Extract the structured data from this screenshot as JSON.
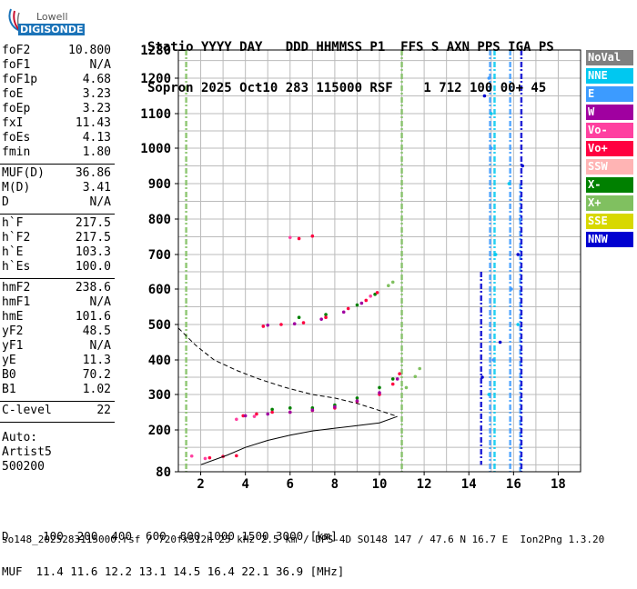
{
  "logo": {
    "top": "Lowell",
    "bottom": "DIGISONDE"
  },
  "header": {
    "line1": "Statio YYYY DAY   DDD HHMMSS P1  FFS S AXN PPS IGA PS",
    "line2": "Sopron 2025 Oct10 283 115000 RSF    1 712 100 00+ 45"
  },
  "params": {
    "group1": [
      {
        "k": "foF2",
        "v": "10.800"
      },
      {
        "k": "foF1",
        "v": "N/A"
      },
      {
        "k": "foF1p",
        "v": "4.68"
      },
      {
        "k": "foE",
        "v": "3.23"
      },
      {
        "k": "foEp",
        "v": "3.23"
      },
      {
        "k": "fxI",
        "v": "11.43"
      },
      {
        "k": "foEs",
        "v": "4.13"
      },
      {
        "k": "fmin",
        "v": "1.80"
      }
    ],
    "group2": [
      {
        "k": "MUF(D)",
        "v": "36.86"
      },
      {
        "k": "M(D)",
        "v": "3.41"
      },
      {
        "k": "D",
        "v": "N/A"
      }
    ],
    "group3": [
      {
        "k": "h`F",
        "v": "217.5"
      },
      {
        "k": "h`F2",
        "v": "217.5"
      },
      {
        "k": "h`E",
        "v": "103.3"
      },
      {
        "k": "h`Es",
        "v": "100.0"
      }
    ],
    "group4": [
      {
        "k": "hmF2",
        "v": "238.6"
      },
      {
        "k": "hmF1",
        "v": "N/A"
      },
      {
        "k": "hmE",
        "v": "101.6"
      },
      {
        "k": "yF2",
        "v": "48.5"
      },
      {
        "k": "yF1",
        "v": "N/A"
      },
      {
        "k": "yE",
        "v": "11.3"
      },
      {
        "k": "B0",
        "v": "70.2"
      },
      {
        "k": "B1",
        "v": "1.02"
      }
    ],
    "group5": [
      {
        "k": "C-level",
        "v": "22"
      }
    ]
  },
  "auto": {
    "l1": "Auto:",
    "l2": "Artist5",
    "l3": "500200"
  },
  "legend": [
    {
      "label": "NoVal",
      "color": "#808080"
    },
    {
      "label": "NNE",
      "color": "#00c8f0"
    },
    {
      "label": "E",
      "color": "#3c9bff"
    },
    {
      "label": "W",
      "color": "#a000a0"
    },
    {
      "label": "Vo-",
      "color": "#ff40a0"
    },
    {
      "label": "Vo+",
      "color": "#ff0040"
    },
    {
      "label": "SSW",
      "color": "#ffb4b4"
    },
    {
      "label": "X-",
      "color": "#008000"
    },
    {
      "label": "X+",
      "color": "#80c060"
    },
    {
      "label": "SSE",
      "color": "#d8d800"
    },
    {
      "label": "NNW",
      "color": "#0000d0"
    }
  ],
  "footer": {
    "d_line": "D     100  200  400  600  800 1000 1500 3000 [km]",
    "muf_line": "MUF  11.4 11.6 12.2 13.1 14.5 16.4 22.1 36.9 [MHz]"
  },
  "fileline": "so148_2025283115000.rsf / 720fx512h 25 kHz 2.5 km / DPS-4D SO148 147 / 47.6 N 16.7 E  Ion2Png 1.3.20",
  "chart_data": {
    "type": "scatter",
    "xlim": [
      1,
      19
    ],
    "ylim": [
      80,
      1280
    ],
    "x_ticks": [
      2,
      4,
      6,
      8,
      10,
      12,
      14,
      16,
      18
    ],
    "y_ticks": [
      80,
      200,
      300,
      400,
      500,
      600,
      700,
      800,
      900,
      1000,
      1100,
      1200,
      1280
    ],
    "grid": true,
    "traces": [
      {
        "name": "X-",
        "color": "#008000",
        "points": [
          [
            5.2,
            258
          ],
          [
            6.0,
            262
          ],
          [
            7.0,
            262
          ],
          [
            8.0,
            270
          ],
          [
            9.0,
            290
          ],
          [
            10.0,
            320
          ],
          [
            10.6,
            345
          ],
          [
            6.4,
            520
          ],
          [
            7.6,
            528
          ],
          [
            9.0,
            555
          ],
          [
            9.8,
            585
          ]
        ]
      },
      {
        "name": "X+",
        "color": "#80c060",
        "points": [
          [
            11.2,
            320
          ],
          [
            11.6,
            352
          ],
          [
            11.8,
            375
          ],
          [
            10.4,
            610
          ],
          [
            10.6,
            620
          ]
        ]
      },
      {
        "name": "Vo+",
        "color": "#ff0040",
        "points": [
          [
            3.9,
            240
          ],
          [
            4.5,
            245
          ],
          [
            5.2,
            250
          ],
          [
            6.0,
            250
          ],
          [
            7.0,
            255
          ],
          [
            8.0,
            262
          ],
          [
            9.0,
            280
          ],
          [
            10.0,
            300
          ],
          [
            10.6,
            330
          ],
          [
            10.9,
            360
          ],
          [
            4.8,
            495
          ],
          [
            5.6,
            500
          ],
          [
            6.6,
            505
          ],
          [
            7.6,
            520
          ],
          [
            8.6,
            545
          ],
          [
            9.4,
            568
          ],
          [
            9.9,
            590
          ],
          [
            6.4,
            745
          ],
          [
            7.0,
            752
          ],
          [
            2.4,
            120
          ],
          [
            3.0,
            124
          ],
          [
            3.6,
            126
          ]
        ]
      },
      {
        "name": "W",
        "color": "#a000a0",
        "points": [
          [
            4.0,
            240
          ],
          [
            5.0,
            245
          ],
          [
            6.0,
            250
          ],
          [
            7.0,
            256
          ],
          [
            8.0,
            265
          ],
          [
            9.0,
            282
          ],
          [
            10.0,
            305
          ],
          [
            10.8,
            345
          ],
          [
            5.0,
            498
          ],
          [
            6.2,
            502
          ],
          [
            7.4,
            515
          ],
          [
            8.4,
            535
          ],
          [
            9.2,
            560
          ]
        ]
      },
      {
        "name": "Vo-",
        "color": "#ff40a0",
        "points": [
          [
            3.6,
            230
          ],
          [
            4.4,
            238
          ],
          [
            6.0,
            748
          ],
          [
            9.6,
            580
          ],
          [
            1.6,
            125
          ],
          [
            2.2,
            118
          ]
        ]
      },
      {
        "name": "NNE",
        "color": "#00c8f0",
        "points": [
          [
            14.9,
            300
          ],
          [
            15.2,
            700
          ],
          [
            15.8,
            900
          ],
          [
            15.0,
            1100
          ],
          [
            16.2,
            500
          ]
        ]
      },
      {
        "name": "E",
        "color": "#3c9bff",
        "points": [
          [
            15.1,
            400
          ],
          [
            15.9,
            600
          ],
          [
            16.3,
            800
          ],
          [
            15.0,
            1000
          ],
          [
            14.9,
            1200
          ]
        ]
      },
      {
        "name": "NNW",
        "color": "#0000d0",
        "points": [
          [
            14.6,
            350
          ],
          [
            15.4,
            450
          ],
          [
            16.2,
            700
          ],
          [
            16.4,
            950
          ],
          [
            14.7,
            1150
          ]
        ]
      }
    ],
    "profile_solid": [
      [
        2.0,
        100
      ],
      [
        3.2,
        128
      ],
      [
        4.0,
        150
      ],
      [
        5.0,
        170
      ],
      [
        6.0,
        185
      ],
      [
        7.0,
        197
      ],
      [
        8.0,
        205
      ],
      [
        9.0,
        212
      ],
      [
        10.0,
        220
      ],
      [
        10.8,
        238
      ]
    ],
    "profile_dashed": [
      [
        1.0,
        490
      ],
      [
        1.8,
        440
      ],
      [
        2.6,
        400
      ],
      [
        3.6,
        370
      ],
      [
        4.6,
        345
      ],
      [
        5.8,
        320
      ],
      [
        7.0,
        300
      ],
      [
        8.0,
        290
      ],
      [
        9.0,
        275
      ],
      [
        10.0,
        255
      ],
      [
        10.8,
        238
      ]
    ],
    "interference_columns": [
      {
        "x": 14.95,
        "color": "#3c9bff",
        "y0": 80,
        "y1": 1280
      },
      {
        "x": 15.15,
        "color": "#00c8f0",
        "y0": 80,
        "y1": 1280
      },
      {
        "x": 15.85,
        "color": "#3c9bff",
        "y0": 80,
        "y1": 1280
      },
      {
        "x": 16.3,
        "color": "#3c9bff",
        "y0": 80,
        "y1": 900
      },
      {
        "x": 16.35,
        "color": "#0000d0",
        "y0": 80,
        "y1": 1280
      },
      {
        "x": 14.55,
        "color": "#0000d0",
        "y0": 100,
        "y1": 650
      },
      {
        "x": 11.0,
        "color": "#80c060",
        "y0": 80,
        "y1": 1280
      },
      {
        "x": 1.35,
        "color": "#80c060",
        "y0": 80,
        "y1": 1280
      }
    ]
  }
}
